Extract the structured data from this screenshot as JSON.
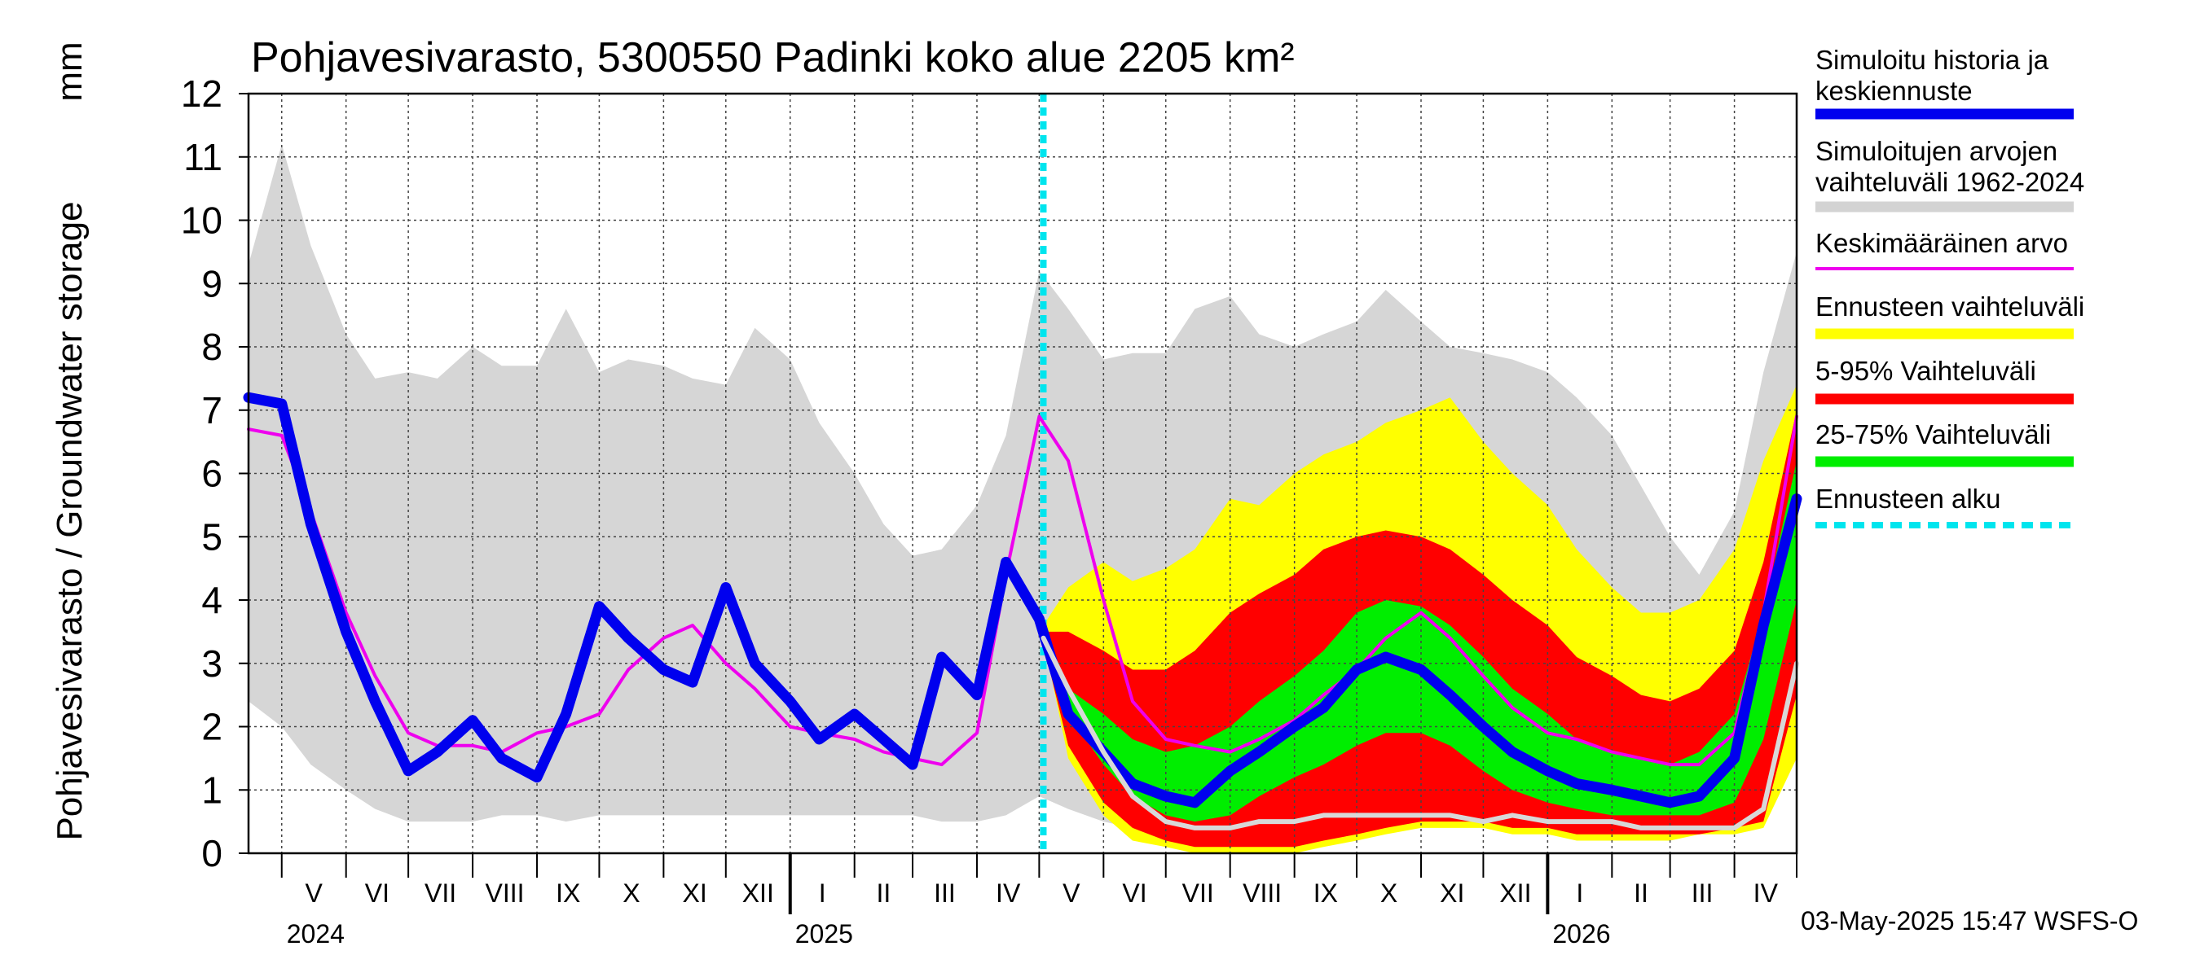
{
  "chart_data": {
    "type": "area",
    "title": "Pohjavesivarasto, 5300550 Padinki koko alue 2205 km²",
    "ylabel": "Pohjavesivarasto / Groundwater storage",
    "yunit": "mm",
    "ylim": [
      0,
      12
    ],
    "yticks": [
      0,
      1,
      2,
      3,
      4,
      5,
      6,
      7,
      8,
      9,
      10,
      11,
      12
    ],
    "xlim": [
      "2024-04-15",
      "2026-05-01"
    ],
    "month_labels": [
      "V",
      "VI",
      "VII",
      "VIII",
      "IX",
      "X",
      "XI",
      "XII",
      "I",
      "II",
      "III",
      "IV",
      "V",
      "VI",
      "VII",
      "VIII",
      "IX",
      "X",
      "XI",
      "XII",
      "I",
      "II",
      "III",
      "IV"
    ],
    "month_starts": [
      "2024-05-01",
      "2024-06-01",
      "2024-07-01",
      "2024-08-01",
      "2024-09-01",
      "2024-10-01",
      "2024-11-01",
      "2024-12-01",
      "2025-01-01",
      "2025-02-01",
      "2025-03-01",
      "2025-04-01",
      "2025-05-01",
      "2025-06-01",
      "2025-07-01",
      "2025-08-01",
      "2025-09-01",
      "2025-10-01",
      "2025-11-01",
      "2025-12-01",
      "2026-01-01",
      "2026-02-01",
      "2026-03-01",
      "2026-04-01",
      "2026-05-01"
    ],
    "year_labels": [
      {
        "label": "2024",
        "date": "2024-05-01"
      },
      {
        "label": "2025",
        "date": "2025-01-01"
      },
      {
        "label": "2026",
        "date": "2026-01-01"
      }
    ],
    "forecast_start": "2025-05-03",
    "grid": true,
    "legend_position": "right",
    "legend": [
      {
        "label": "Simuloitu historia ja keskiennuste",
        "color": "#0000ee"
      },
      {
        "label": "Simuloitujen arvojen vaihteluväli 1962-2024",
        "color": "#d3d3d3"
      },
      {
        "label": "Keskimääräinen arvo",
        "color": "#ee00ee"
      },
      {
        "label": "Ennusteen vaihteluväli",
        "color": "#ffff00"
      },
      {
        "label": "5-95% Vaihteluväli",
        "color": "#ff0000"
      },
      {
        "label": "25-75% Vaihteluväli",
        "color": "#00ee00"
      },
      {
        "label": "Ennusteen alku",
        "color": "#00e5ee"
      }
    ],
    "series": [
      {
        "name": "Simuloitujen arvojen vaihteluväli 1962-2024",
        "kind": "band",
        "x": [
          "2024-04-15",
          "2024-05-01",
          "2024-05-15",
          "2024-06-01",
          "2024-06-15",
          "2024-07-01",
          "2024-07-15",
          "2024-08-01",
          "2024-08-15",
          "2024-09-01",
          "2024-09-15",
          "2024-10-01",
          "2024-10-15",
          "2024-11-01",
          "2024-11-15",
          "2024-12-01",
          "2024-12-15",
          "2025-01-01",
          "2025-01-15",
          "2025-02-01",
          "2025-02-15",
          "2025-03-01",
          "2025-03-15",
          "2025-04-01",
          "2025-04-15",
          "2025-05-01",
          "2025-05-15",
          "2025-06-01",
          "2025-06-15",
          "2025-07-01",
          "2025-07-15",
          "2025-08-01",
          "2025-08-15",
          "2025-09-01",
          "2025-09-15",
          "2025-10-01",
          "2025-10-15",
          "2025-11-01",
          "2025-11-15",
          "2025-12-01",
          "2025-12-15",
          "2026-01-01",
          "2026-01-15",
          "2026-02-01",
          "2026-02-15",
          "2026-03-01",
          "2026-03-15",
          "2026-04-01",
          "2026-04-15",
          "2026-05-01"
        ],
        "lower": [
          2.4,
          2.0,
          1.4,
          1.0,
          0.7,
          0.5,
          0.5,
          0.5,
          0.6,
          0.6,
          0.5,
          0.6,
          0.6,
          0.6,
          0.6,
          0.6,
          0.6,
          0.6,
          0.6,
          0.6,
          0.6,
          0.6,
          0.5,
          0.5,
          0.6,
          0.9,
          0.7,
          0.5,
          0.4,
          0.3,
          0.2,
          0.2,
          0.2,
          0.2,
          0.3,
          0.4,
          0.4,
          0.5,
          0.5,
          0.5,
          0.4,
          0.4,
          0.4,
          0.4,
          0.3,
          0.3,
          0.3,
          0.4,
          0.7,
          1.5
        ],
        "upper": [
          9.3,
          11.2,
          9.6,
          8.2,
          7.5,
          7.6,
          7.5,
          8.0,
          7.7,
          7.7,
          8.6,
          7.6,
          7.8,
          7.7,
          7.5,
          7.4,
          8.3,
          7.8,
          6.8,
          6.0,
          5.2,
          4.7,
          4.8,
          5.5,
          6.6,
          9.2,
          8.6,
          7.8,
          7.9,
          7.9,
          8.6,
          8.8,
          8.2,
          8.0,
          8.2,
          8.4,
          8.9,
          8.4,
          8.0,
          7.9,
          7.8,
          7.6,
          7.2,
          6.6,
          5.8,
          5.0,
          4.4,
          5.4,
          7.6,
          9.5
        ]
      },
      {
        "name": "Ennusteen vaihteluväli",
        "kind": "band",
        "x": [
          "2025-05-03",
          "2025-05-15",
          "2025-06-01",
          "2025-06-15",
          "2025-07-01",
          "2025-07-15",
          "2025-08-01",
          "2025-08-15",
          "2025-09-01",
          "2025-09-15",
          "2025-10-01",
          "2025-10-15",
          "2025-11-01",
          "2025-11-15",
          "2025-12-01",
          "2025-12-15",
          "2026-01-01",
          "2026-01-15",
          "2026-02-01",
          "2026-02-15",
          "2026-03-01",
          "2026-03-15",
          "2026-04-01",
          "2026-04-15",
          "2026-05-01"
        ],
        "lower": [
          3.4,
          1.5,
          0.6,
          0.2,
          0.1,
          0.0,
          0.0,
          0.0,
          0.0,
          0.1,
          0.2,
          0.3,
          0.4,
          0.4,
          0.4,
          0.3,
          0.3,
          0.2,
          0.2,
          0.2,
          0.2,
          0.3,
          0.3,
          0.4,
          1.5
        ],
        "upper": [
          3.6,
          4.2,
          4.6,
          4.3,
          4.5,
          4.8,
          5.6,
          5.5,
          6.0,
          6.3,
          6.5,
          6.8,
          7.0,
          7.2,
          6.5,
          6.0,
          5.5,
          4.8,
          4.2,
          3.8,
          3.8,
          4.0,
          4.8,
          6.2,
          7.4
        ]
      },
      {
        "name": "5-95% Vaihteluväli",
        "kind": "band",
        "x": [
          "2025-05-03",
          "2025-05-15",
          "2025-06-01",
          "2025-06-15",
          "2025-07-01",
          "2025-07-15",
          "2025-08-01",
          "2025-08-15",
          "2025-09-01",
          "2025-09-15",
          "2025-10-01",
          "2025-10-15",
          "2025-11-01",
          "2025-11-15",
          "2025-12-01",
          "2025-12-15",
          "2026-01-01",
          "2026-01-15",
          "2026-02-01",
          "2026-02-15",
          "2026-03-01",
          "2026-03-15",
          "2026-04-01",
          "2026-04-15",
          "2026-05-01"
        ],
        "lower": [
          3.3,
          1.7,
          0.8,
          0.4,
          0.2,
          0.1,
          0.1,
          0.1,
          0.1,
          0.2,
          0.3,
          0.4,
          0.5,
          0.5,
          0.5,
          0.4,
          0.4,
          0.3,
          0.3,
          0.3,
          0.3,
          0.3,
          0.4,
          0.5,
          2.5
        ],
        "upper": [
          3.5,
          3.5,
          3.2,
          2.9,
          2.9,
          3.2,
          3.8,
          4.1,
          4.4,
          4.8,
          5.0,
          5.1,
          5.0,
          4.8,
          4.4,
          4.0,
          3.6,
          3.1,
          2.8,
          2.5,
          2.4,
          2.6,
          3.2,
          4.6,
          7.0
        ]
      },
      {
        "name": "25-75% Vaihteluväli",
        "kind": "band",
        "x": [
          "2025-05-03",
          "2025-05-15",
          "2025-06-01",
          "2025-06-15",
          "2025-07-01",
          "2025-07-15",
          "2025-08-01",
          "2025-08-15",
          "2025-09-01",
          "2025-09-15",
          "2025-10-01",
          "2025-10-15",
          "2025-11-01",
          "2025-11-15",
          "2025-12-01",
          "2025-12-15",
          "2026-01-01",
          "2026-01-15",
          "2026-02-01",
          "2026-02-15",
          "2026-03-01",
          "2026-03-15",
          "2026-04-01",
          "2026-04-15",
          "2026-05-01"
        ],
        "lower": [
          3.3,
          2.2,
          1.4,
          0.9,
          0.6,
          0.5,
          0.6,
          0.9,
          1.2,
          1.4,
          1.7,
          1.9,
          1.9,
          1.7,
          1.3,
          1.0,
          0.8,
          0.7,
          0.6,
          0.6,
          0.6,
          0.6,
          0.8,
          1.8,
          4.0
        ],
        "upper": [
          3.4,
          2.6,
          2.2,
          1.8,
          1.6,
          1.7,
          2.0,
          2.4,
          2.8,
          3.2,
          3.8,
          4.0,
          3.9,
          3.6,
          3.1,
          2.6,
          2.2,
          1.8,
          1.6,
          1.5,
          1.4,
          1.6,
          2.2,
          3.8,
          6.2
        ]
      },
      {
        "name": "Keskimääräinen arvo",
        "kind": "line",
        "color": "#ee00ee",
        "x": [
          "2024-04-15",
          "2024-05-01",
          "2024-05-15",
          "2024-06-01",
          "2024-06-15",
          "2024-07-01",
          "2024-07-15",
          "2024-08-01",
          "2024-08-15",
          "2024-09-01",
          "2024-09-15",
          "2024-10-01",
          "2024-10-15",
          "2024-11-01",
          "2024-11-15",
          "2024-12-01",
          "2024-12-15",
          "2025-01-01",
          "2025-01-15",
          "2025-02-01",
          "2025-02-15",
          "2025-03-01",
          "2025-03-15",
          "2025-04-01",
          "2025-04-15",
          "2025-05-01",
          "2025-05-15",
          "2025-06-01",
          "2025-06-15",
          "2025-07-01",
          "2025-07-15",
          "2025-08-01",
          "2025-08-15",
          "2025-09-01",
          "2025-09-15",
          "2025-10-01",
          "2025-10-15",
          "2025-11-01",
          "2025-11-15",
          "2025-12-01",
          "2025-12-15",
          "2026-01-01",
          "2026-01-15",
          "2026-02-01",
          "2026-02-15",
          "2026-03-01",
          "2026-03-15",
          "2026-04-01",
          "2026-04-15",
          "2026-05-01"
        ],
        "values": [
          6.7,
          6.6,
          5.4,
          3.8,
          2.8,
          1.9,
          1.7,
          1.7,
          1.6,
          1.9,
          2.0,
          2.2,
          2.9,
          3.4,
          3.6,
          3.0,
          2.6,
          2.0,
          1.9,
          1.8,
          1.6,
          1.5,
          1.4,
          1.9,
          4.4,
          6.9,
          6.2,
          4.0,
          2.4,
          1.8,
          1.7,
          1.6,
          1.8,
          2.1,
          2.5,
          2.9,
          3.4,
          3.8,
          3.4,
          2.8,
          2.3,
          1.9,
          1.8,
          1.6,
          1.5,
          1.4,
          1.4,
          1.9,
          3.8,
          6.9
        ]
      },
      {
        "name": "Simuloitu historia ja keskiennuste",
        "kind": "line",
        "color": "#0000ee",
        "x": [
          "2024-04-15",
          "2024-05-01",
          "2024-05-15",
          "2024-06-01",
          "2024-06-15",
          "2024-07-01",
          "2024-07-15",
          "2024-08-01",
          "2024-08-15",
          "2024-09-01",
          "2024-09-15",
          "2024-10-01",
          "2024-10-15",
          "2024-11-01",
          "2024-11-15",
          "2024-12-01",
          "2024-12-15",
          "2025-01-01",
          "2025-01-15",
          "2025-02-01",
          "2025-02-15",
          "2025-03-01",
          "2025-03-15",
          "2025-04-01",
          "2025-04-15",
          "2025-05-01",
          "2025-05-15",
          "2025-06-01",
          "2025-06-15",
          "2025-07-01",
          "2025-07-15",
          "2025-08-01",
          "2025-08-15",
          "2025-09-01",
          "2025-09-15",
          "2025-10-01",
          "2025-10-15",
          "2025-11-01",
          "2025-11-15",
          "2025-12-01",
          "2025-12-15",
          "2026-01-01",
          "2026-01-15",
          "2026-02-01",
          "2026-02-15",
          "2026-03-01",
          "2026-03-15",
          "2026-04-01",
          "2026-04-15",
          "2026-05-01"
        ],
        "values": [
          7.2,
          7.1,
          5.2,
          3.5,
          2.4,
          1.3,
          1.6,
          2.1,
          1.5,
          1.2,
          2.2,
          3.9,
          3.4,
          2.9,
          2.7,
          4.2,
          3.0,
          2.4,
          1.8,
          2.2,
          1.8,
          1.4,
          3.1,
          2.5,
          4.6,
          3.7,
          2.2,
          1.6,
          1.1,
          0.9,
          0.8,
          1.3,
          1.6,
          2.0,
          2.3,
          2.9,
          3.1,
          2.9,
          2.5,
          2.0,
          1.6,
          1.3,
          1.1,
          1.0,
          0.9,
          0.8,
          0.9,
          1.5,
          3.6,
          5.6
        ]
      },
      {
        "name": "",
        "kind": "line",
        "color": "#d8d8d8",
        "x": [
          "2025-05-03",
          "2025-05-15",
          "2025-06-01",
          "2025-06-15",
          "2025-07-01",
          "2025-07-15",
          "2025-08-01",
          "2025-08-15",
          "2025-09-01",
          "2025-09-15",
          "2025-10-01",
          "2025-10-15",
          "2025-11-01",
          "2025-11-15",
          "2025-12-01",
          "2025-12-15",
          "2026-01-01",
          "2026-01-15",
          "2026-02-01",
          "2026-02-15",
          "2026-03-01",
          "2026-03-15",
          "2026-04-01",
          "2026-04-15",
          "2026-05-01"
        ],
        "values": [
          3.4,
          2.6,
          1.6,
          0.9,
          0.5,
          0.4,
          0.4,
          0.5,
          0.5,
          0.6,
          0.6,
          0.6,
          0.6,
          0.6,
          0.5,
          0.6,
          0.5,
          0.5,
          0.5,
          0.4,
          0.4,
          0.4,
          0.4,
          0.7,
          3.0
        ]
      }
    ],
    "timestamp": "03-May-2025 15:47 WSFS-O"
  }
}
